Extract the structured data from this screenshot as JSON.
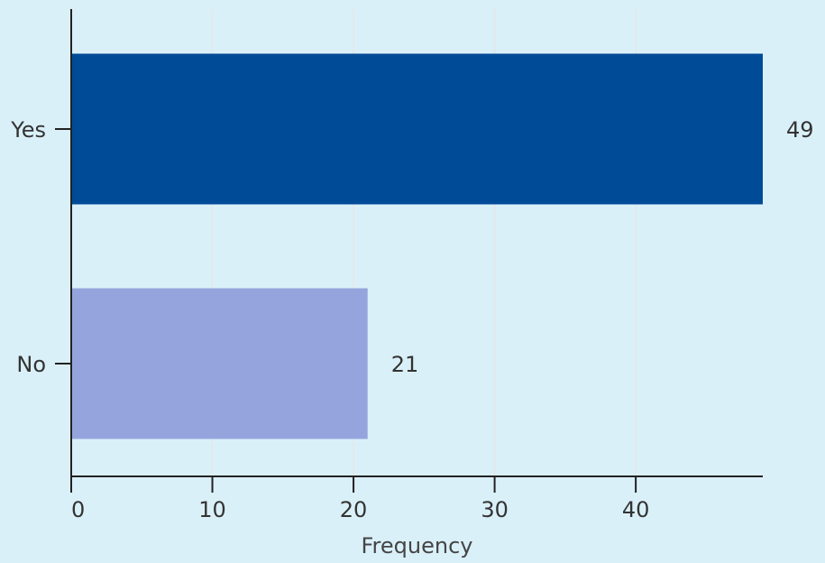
{
  "chart_data": {
    "type": "bar",
    "orientation": "horizontal",
    "title": "",
    "xlabel": "Frequency",
    "ylabel": "",
    "categories": [
      "Yes",
      "No"
    ],
    "values": [
      49,
      21
    ],
    "data_labels": [
      "49",
      "21"
    ],
    "bar_colors": [
      "#004b98",
      "#95a4dd"
    ],
    "xlim": [
      0,
      49
    ],
    "x_ticks": [
      0,
      10,
      20,
      30,
      40
    ],
    "x_tick_labels": [
      "0",
      "10",
      "20",
      "30",
      "40"
    ],
    "grid": true,
    "legend": "none",
    "background_color": "#daf0f9",
    "grid_color": "#e6e6e6",
    "axis_color": "#222222"
  }
}
